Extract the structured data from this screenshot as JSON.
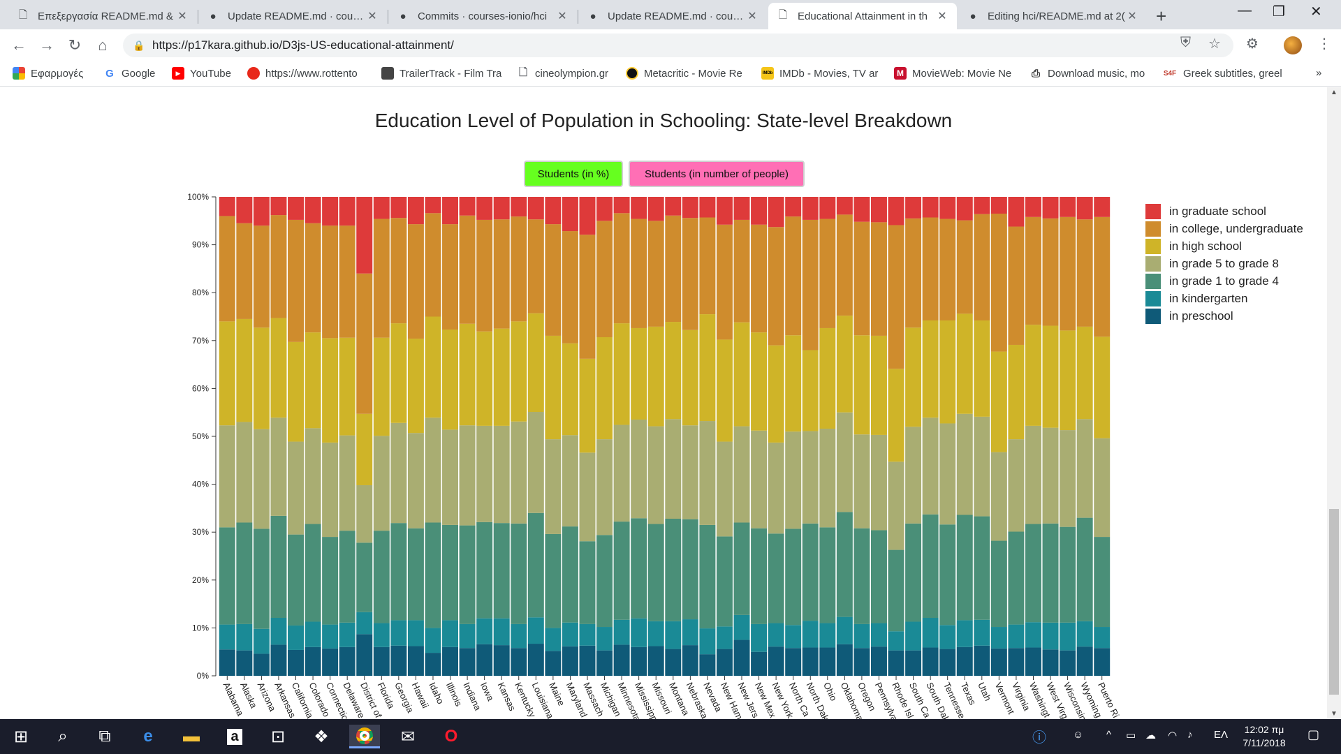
{
  "browser": {
    "tabs": [
      {
        "label": "Επεξεργασία README.md &",
        "icon": "document-icon"
      },
      {
        "label": "Update README.md · course",
        "icon": "github-icon"
      },
      {
        "label": "Commits · courses-ionio/hci",
        "icon": "github-icon"
      },
      {
        "label": "Update README.md · course",
        "icon": "github-icon"
      },
      {
        "label": "Educational Attainment in th",
        "icon": "document-icon",
        "active": true
      },
      {
        "label": "Editing hci/README.md at 2(",
        "icon": "github-icon"
      }
    ],
    "url": "https://p17kara.github.io/D3js-US-educational-attainment/",
    "bookmarks": [
      {
        "label": "Εφαρμογές",
        "icon": "apps-grid-icon"
      },
      {
        "label": "Google",
        "icon": "google-icon"
      },
      {
        "label": "YouTube",
        "icon": "youtube-icon"
      },
      {
        "label": "https://www.rottento",
        "icon": "tomato-icon"
      },
      {
        "label": "TrailerTrack - Film Tra",
        "icon": "trailertrack-icon"
      },
      {
        "label": "cineolympion.gr",
        "icon": "document-icon"
      },
      {
        "label": "Metacritic - Movie Re",
        "icon": "metacritic-icon"
      },
      {
        "label": "IMDb - Movies, TV ar",
        "icon": "imdb-icon"
      },
      {
        "label": "MovieWeb: Movie Ne",
        "icon": "movieweb-icon"
      },
      {
        "label": "Download music, mo",
        "icon": "printer-icon"
      },
      {
        "label": "Greek subtitles, greel",
        "icon": "s4f-icon"
      }
    ],
    "bookmark_icon_text": {
      "imdb": "IMDb",
      "movieweb": "M",
      "s4f": "S4F",
      "google": "G"
    },
    "bookmarks_more": "»"
  },
  "page": {
    "title": "Education Level of Population in Schooling: State-level Breakdown",
    "buttons": {
      "percent": "Students (in %)",
      "people": "Students (in number of people)"
    }
  },
  "chart_data": {
    "type": "bar",
    "stacked": true,
    "normalized": true,
    "ylim": [
      0,
      100
    ],
    "yticks": [
      "0%",
      "10%",
      "20%",
      "30%",
      "40%",
      "50%",
      "60%",
      "70%",
      "80%",
      "90%",
      "100%"
    ],
    "categories": [
      "Alabama",
      "Alaska",
      "Arizona",
      "Arkansas",
      "California",
      "Colorado",
      "Connecticut",
      "Delaware",
      "District of Columbia",
      "Florida",
      "Georgia",
      "Hawaii",
      "Idaho",
      "Illinois",
      "Indiana",
      "Iowa",
      "Kansas",
      "Kentucky",
      "Louisiana",
      "Maine",
      "Maryland",
      "Massachusetts",
      "Michigan",
      "Minnesota",
      "Mississippi",
      "Missouri",
      "Montana",
      "Nebraska",
      "Nevada",
      "New Hampshire",
      "New Jersey",
      "New Mexico",
      "New York",
      "North Carolina",
      "North Dakota",
      "Ohio",
      "Oklahoma",
      "Oregon",
      "Pennsylvania",
      "Rhode Island",
      "South Carolina",
      "South Dakota",
      "Tennessee",
      "Texas",
      "Utah",
      "Vermont",
      "Virginia",
      "Washington",
      "West Virginia",
      "Wisconsin",
      "Wyoming",
      "Puerto Rico"
    ],
    "tick_labels": [
      "Alabama",
      "Alaska",
      "Arizona",
      "Arkansas",
      "California",
      "Colorado",
      "Connectic",
      "Delaware",
      "District of",
      "Florida",
      "Georgia",
      "Hawaii",
      "Idaho",
      "Illinois",
      "Indiana",
      "Iowa",
      "Kansas",
      "Kentucky",
      "Louisiana",
      "Maine",
      "Maryland",
      "Massach",
      "Michigan",
      "Minnesota",
      "Mississipp",
      "Missouri",
      "Montana",
      "Nebraska",
      "Nevada",
      "New Ham",
      "New Jers",
      "New Mex",
      "New York",
      "North Ca",
      "North Dak",
      "Ohio",
      "Oklahoma",
      "Oregon",
      "Pennsylva",
      "Rhode Isl",
      "South Ca",
      "South Dak",
      "Tennesse",
      "Texas",
      "Utah",
      "Vermont",
      "Virginia",
      "Washingt",
      "West Virg",
      "Wisconsin",
      "Wyoming",
      "Puerto Ri"
    ],
    "series": [
      {
        "name": "in preschool",
        "color": "#0f5a78",
        "values": [
          5.5,
          5.3,
          4.6,
          6.5,
          5.4,
          6.0,
          5.7,
          6.0,
          8.7,
          6.0,
          6.3,
          6.2,
          4.8,
          6.0,
          5.8,
          6.6,
          6.4,
          5.8,
          6.7,
          5.2,
          6.2,
          6.3,
          5.3,
          6.5,
          6.0,
          6.2,
          5.6,
          6.4,
          4.5,
          5.6,
          7.5,
          5.0,
          6.1,
          5.8,
          5.9,
          5.9,
          6.6,
          5.8,
          6.1,
          5.3,
          5.3,
          5.9,
          5.6,
          6.0,
          6.3,
          5.7,
          5.8,
          5.9,
          5.5,
          5.3,
          6.1,
          5.8
        ]
      },
      {
        "name": "in kindergarten",
        "color": "#1a8a96",
        "values": [
          5.2,
          5.5,
          5.2,
          5.6,
          5.1,
          5.3,
          5.0,
          5.1,
          4.6,
          5.0,
          5.3,
          5.4,
          5.2,
          5.6,
          5.0,
          5.4,
          5.6,
          5.0,
          5.5,
          4.8,
          5.0,
          4.5,
          4.9,
          5.2,
          6.0,
          5.2,
          5.8,
          5.4,
          5.4,
          4.7,
          5.2,
          5.8,
          4.9,
          4.8,
          5.6,
          5.1,
          5.7,
          5.0,
          4.9,
          4.0,
          6.0,
          6.2,
          5.0,
          5.6,
          5.4,
          4.5,
          4.9,
          5.3,
          5.6,
          5.8,
          5.3,
          4.4
        ]
      },
      {
        "name": "in grade 1 to grade 4",
        "color": "#4a8f78",
        "values": [
          20.3,
          21.2,
          20.9,
          21.3,
          19.0,
          20.4,
          18.3,
          19.2,
          14.5,
          19.3,
          20.3,
          19.2,
          22.0,
          19.9,
          20.6,
          20.1,
          19.9,
          21.0,
          21.8,
          19.6,
          20.2,
          17.3,
          19.2,
          20.5,
          20.9,
          20.3,
          21.4,
          20.9,
          21.6,
          18.8,
          19.3,
          20.0,
          18.7,
          20.1,
          20.3,
          20.0,
          21.9,
          20.0,
          19.4,
          17.0,
          20.5,
          21.6,
          21.0,
          22.0,
          21.6,
          18.0,
          19.4,
          20.5,
          20.7,
          20.0,
          21.6,
          18.8
        ]
      },
      {
        "name": "in grade 5 to grade 8",
        "color": "#a9ad72",
        "values": [
          21.3,
          21.0,
          20.8,
          20.5,
          19.4,
          20.0,
          19.7,
          19.9,
          12.0,
          19.8,
          20.9,
          19.9,
          21.9,
          19.9,
          20.9,
          20.1,
          20.3,
          21.3,
          21.1,
          19.8,
          19.2,
          18.5,
          20.0,
          20.2,
          20.6,
          20.4,
          20.8,
          19.6,
          21.7,
          19.8,
          20.1,
          20.4,
          19.0,
          20.3,
          19.3,
          20.6,
          20.8,
          19.6,
          19.9,
          18.4,
          20.2,
          20.2,
          21.1,
          21.1,
          20.8,
          18.5,
          19.3,
          20.5,
          20.0,
          20.2,
          20.6,
          20.6
        ]
      },
      {
        "name": "in high school",
        "color": "#cfb428",
        "values": [
          21.7,
          21.5,
          21.2,
          20.8,
          20.8,
          20.0,
          21.8,
          20.4,
          14.9,
          20.5,
          20.8,
          19.7,
          21.1,
          20.9,
          21.2,
          19.7,
          20.3,
          20.9,
          20.6,
          21.6,
          19.3,
          19.6,
          21.3,
          21.2,
          19.1,
          20.8,
          20.3,
          19.9,
          22.3,
          21.3,
          21.7,
          20.5,
          20.3,
          20.1,
          16.9,
          21.0,
          20.2,
          20.7,
          20.7,
          19.4,
          20.7,
          20.3,
          21.5,
          20.9,
          20.1,
          21.0,
          19.7,
          21.1,
          21.3,
          20.8,
          19.3,
          21.2
        ]
      },
      {
        "name": "in college, undergraduate",
        "color": "#cf8c2d",
        "values": [
          22.0,
          20.0,
          21.3,
          21.5,
          25.5,
          22.8,
          23.5,
          23.4,
          29.3,
          24.8,
          22.0,
          23.9,
          21.6,
          22.0,
          22.6,
          23.3,
          22.8,
          21.9,
          19.6,
          23.3,
          23.6,
          25.9,
          24.3,
          23.0,
          22.8,
          22.1,
          22.2,
          23.4,
          20.2,
          24.0,
          21.4,
          22.5,
          24.7,
          24.8,
          27.2,
          22.8,
          21.1,
          23.7,
          23.7,
          30.0,
          22.8,
          21.5,
          21.2,
          19.5,
          22.2,
          28.8,
          24.7,
          22.5,
          22.4,
          23.7,
          22.4,
          25.0
        ]
      },
      {
        "name": "in graduate school",
        "color": "#de3a3a",
        "values": [
          4.0,
          5.5,
          6.0,
          3.8,
          4.8,
          5.5,
          6.0,
          6.0,
          16.0,
          4.6,
          4.4,
          5.7,
          3.4,
          5.7,
          3.9,
          4.8,
          4.7,
          4.1,
          4.7,
          5.7,
          7.2,
          7.9,
          5.0,
          3.4,
          4.6,
          5.0,
          3.9,
          4.4,
          4.3,
          5.8,
          4.8,
          5.8,
          6.3,
          4.1,
          4.8,
          4.6,
          3.7,
          5.2,
          5.3,
          5.9,
          4.5,
          4.3,
          4.6,
          4.9,
          3.6,
          3.5,
          6.2,
          4.2,
          4.5,
          4.2,
          4.7,
          4.2
        ]
      }
    ]
  },
  "taskbar": {
    "icons": [
      "windows-start-icon",
      "search-icon",
      "task-view-icon",
      "edge-icon",
      "file-explorer-icon",
      "amazon-icon",
      "store-icon",
      "dropbox-icon",
      "chrome-icon",
      "mail-icon",
      "opera-icon"
    ],
    "tray": {
      "language": "ΕΛ",
      "time": "12:02 πμ",
      "date": "7/11/2018"
    }
  }
}
